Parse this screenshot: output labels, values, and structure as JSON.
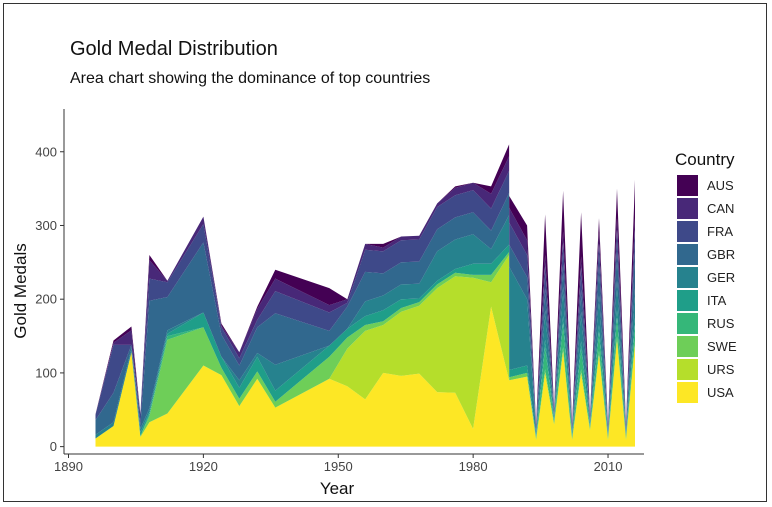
{
  "chart_data": {
    "type": "area",
    "title": "Gold Medal Distribution",
    "subtitle": "Area chart showing the dominance of top countries",
    "xlabel": "Year",
    "ylabel": "Gold Medals",
    "xlim": [
      1889,
      2018
    ],
    "ylim": [
      -10,
      458
    ],
    "x_ticks": [
      1890,
      1920,
      1950,
      1980,
      2010
    ],
    "y_ticks": [
      0,
      100,
      200,
      300,
      400
    ],
    "legend_title": "Country",
    "legend_position": "right",
    "grid": false,
    "stack_order": [
      "USA",
      "URS",
      "SWE",
      "RUS",
      "ITA",
      "GER",
      "GBR",
      "FRA",
      "CAN",
      "AUS"
    ],
    "colors": {
      "AUS": "#440154",
      "CAN": "#482878",
      "FRA": "#3e4989",
      "GBR": "#31688e",
      "GER": "#26828e",
      "ITA": "#1f9e89",
      "RUS": "#35b779",
      "SWE": "#6ece58",
      "URS": "#b5de2b",
      "USA": "#fde725"
    },
    "x": [
      1896,
      1900,
      1904,
      1906,
      1908,
      1912,
      1920,
      1924,
      1928,
      1932,
      1936,
      1948,
      1952,
      1956,
      1960,
      1964,
      1968,
      1972,
      1976,
      1980,
      1984,
      1988,
      1988.01,
      1992,
      1994,
      1996,
      1998,
      2000,
      2002,
      2004,
      2006,
      2008,
      2010,
      2012,
      2014,
      2016
    ],
    "series": [
      {
        "name": "USA",
        "values": [
          11,
          28,
          128,
          13,
          33,
          45,
          110,
          97,
          55,
          92,
          53,
          92,
          82,
          64,
          100,
          96,
          99,
          74,
          73,
          24,
          190,
          90,
          90,
          95,
          9,
          100,
          30,
          130,
          9,
          100,
          22,
          125,
          9,
          145,
          9,
          139
        ]
      },
      {
        "name": "URS",
        "values": [
          0,
          0,
          0,
          0,
          0,
          0,
          0,
          0,
          0,
          0,
          0,
          0,
          51,
          93,
          65,
          87,
          92,
          141,
          158,
          205,
          33,
          170,
          0,
          0,
          0,
          0,
          0,
          0,
          0,
          0,
          0,
          0,
          0,
          0,
          0,
          0
        ]
      },
      {
        "name": "SWE",
        "values": [
          0,
          0,
          0,
          1,
          8,
          100,
          52,
          10,
          10,
          10,
          8,
          30,
          15,
          8,
          5,
          5,
          5,
          5,
          5,
          4,
          10,
          4,
          4,
          5,
          2,
          5,
          2,
          5,
          2,
          5,
          2,
          5,
          2,
          5,
          2,
          5
        ]
      },
      {
        "name": "RUS",
        "values": [
          0,
          0,
          0,
          0,
          3,
          5,
          0,
          0,
          0,
          0,
          0,
          0,
          0,
          0,
          0,
          0,
          0,
          0,
          0,
          0,
          0,
          0,
          0,
          0,
          2,
          30,
          3,
          32,
          3,
          28,
          3,
          25,
          2,
          25,
          2,
          21
        ]
      },
      {
        "name": "ITA",
        "values": [
          0,
          0,
          0,
          5,
          3,
          3,
          20,
          15,
          15,
          20,
          15,
          15,
          12,
          12,
          15,
          12,
          5,
          5,
          5,
          15,
          15,
          10,
          10,
          10,
          2,
          10,
          2,
          10,
          2,
          10,
          2,
          10,
          2,
          10,
          2,
          10
        ]
      },
      {
        "name": "GER",
        "values": [
          5,
          5,
          5,
          5,
          5,
          5,
          0,
          0,
          10,
          5,
          35,
          0,
          0,
          20,
          20,
          20,
          20,
          40,
          40,
          40,
          20,
          40,
          140,
          90,
          3,
          40,
          3,
          40,
          3,
          40,
          3,
          40,
          3,
          40,
          3,
          40
        ]
      },
      {
        "name": "GBR",
        "values": [
          20,
          40,
          5,
          5,
          146,
          45,
          95,
          30,
          20,
          35,
          70,
          20,
          30,
          40,
          30,
          30,
          30,
          30,
          30,
          30,
          25,
          30,
          30,
          30,
          3,
          30,
          3,
          30,
          3,
          30,
          3,
          40,
          3,
          40,
          3,
          50
        ]
      },
      {
        "name": "FRA",
        "values": [
          7,
          65,
          0,
          15,
          30,
          20,
          25,
          10,
          10,
          10,
          30,
          25,
          5,
          30,
          30,
          30,
          30,
          30,
          30,
          30,
          30,
          30,
          30,
          30,
          3,
          30,
          3,
          30,
          3,
          30,
          3,
          30,
          3,
          30,
          3,
          30
        ]
      },
      {
        "name": "CAN",
        "values": [
          0,
          3,
          20,
          0,
          25,
          2,
          10,
          2,
          8,
          15,
          17,
          10,
          5,
          8,
          5,
          5,
          5,
          5,
          10,
          10,
          20,
          20,
          20,
          20,
          3,
          15,
          3,
          15,
          3,
          15,
          3,
          15,
          3,
          15,
          3,
          15
        ]
      },
      {
        "name": "AUS",
        "values": [
          1,
          3,
          5,
          1,
          7,
          0,
          0,
          3,
          0,
          3,
          12,
          23,
          0,
          0,
          5,
          0,
          0,
          0,
          2,
          0,
          10,
          16,
          16,
          20,
          3,
          55,
          3,
          55,
          3,
          60,
          3,
          20,
          3,
          40,
          3,
          52
        ]
      }
    ]
  }
}
